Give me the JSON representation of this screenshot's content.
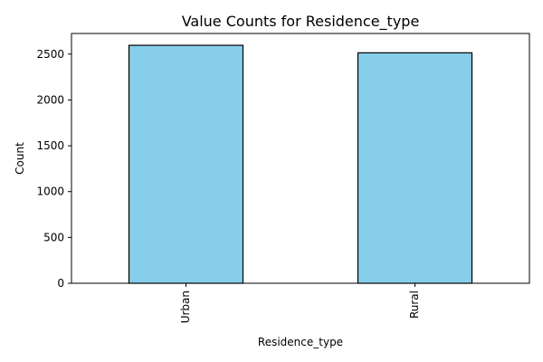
{
  "chart_data": {
    "type": "bar",
    "title": "Value Counts for Residence_type",
    "xlabel": "Residence_type",
    "ylabel": "Count",
    "categories": [
      "Urban",
      "Rural"
    ],
    "values": [
      2596,
      2514
    ],
    "ylim": [
      0,
      2725
    ],
    "yticks": [
      0,
      500,
      1000,
      1500,
      2000,
      2500
    ],
    "x_tick_rotation": 90,
    "grid": false,
    "legend": "none",
    "bar_color": "#87CEEB",
    "bar_edge_color": "#000000"
  }
}
